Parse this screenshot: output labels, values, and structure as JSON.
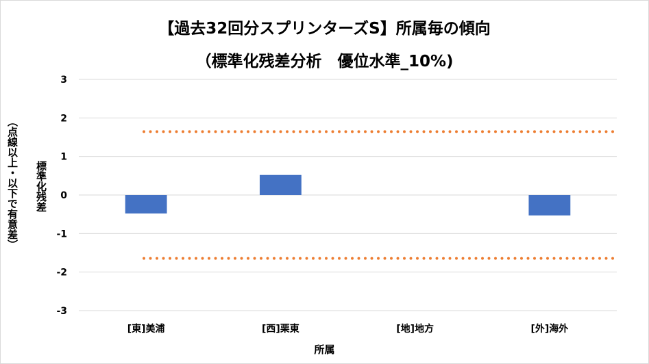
{
  "chart_data": {
    "type": "bar",
    "title": "【過去32回分スプリンターズS】所属毎の傾向",
    "subtitle": "（標準化残差分析　優位水準_10%)",
    "xlabel": "所属",
    "ylabel": "標準化残差",
    "ylabel_note": "（点線以上・以下で有意差）",
    "categories": [
      "[東]美浦",
      "[西]栗東",
      "[地]地方",
      "[外]海外"
    ],
    "values": [
      -0.48,
      0.52,
      0.0,
      -0.53
    ],
    "ylim": [
      -3,
      3
    ],
    "yticks": [
      "3",
      "2",
      "1",
      "0",
      "-1",
      "-2",
      "-3"
    ],
    "threshold_lines": [
      1.645,
      -1.645
    ],
    "grid": true,
    "legend": "none",
    "bar_color": "#4472c4",
    "threshold_color": "#ed7d31"
  }
}
